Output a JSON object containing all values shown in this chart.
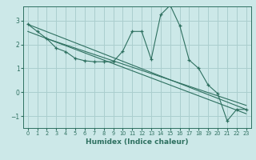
{
  "xlabel": "Humidex (Indice chaleur)",
  "bg_color": "#cce8e8",
  "grid_color": "#aacece",
  "line_color": "#2e7060",
  "xlim": [
    -0.5,
    23.5
  ],
  "ylim": [
    -1.5,
    3.6
  ],
  "yticks": [
    -1,
    0,
    1,
    2,
    3
  ],
  "xticks": [
    0,
    1,
    2,
    3,
    4,
    5,
    6,
    7,
    8,
    9,
    10,
    11,
    12,
    13,
    14,
    15,
    16,
    17,
    18,
    19,
    20,
    21,
    22,
    23
  ],
  "series1_x": [
    0,
    1,
    2,
    3,
    4,
    5,
    6,
    7,
    8,
    9,
    10,
    11,
    12,
    13,
    14,
    15,
    16,
    17,
    18,
    19,
    20,
    21,
    22,
    23
  ],
  "series1_y": [
    2.85,
    2.55,
    2.25,
    1.85,
    1.7,
    1.42,
    1.32,
    1.28,
    1.28,
    1.28,
    1.72,
    2.55,
    2.55,
    1.38,
    3.25,
    3.65,
    2.8,
    1.35,
    1.0,
    0.3,
    -0.05,
    -1.2,
    -0.72,
    -0.72
  ],
  "series2_x": [
    0,
    23
  ],
  "series2_y": [
    2.85,
    -0.72
  ],
  "series3_x": [
    0,
    23
  ],
  "series3_y": [
    2.55,
    -0.9
  ],
  "series4_x": [
    2,
    23
  ],
  "series4_y": [
    2.25,
    -0.55
  ]
}
